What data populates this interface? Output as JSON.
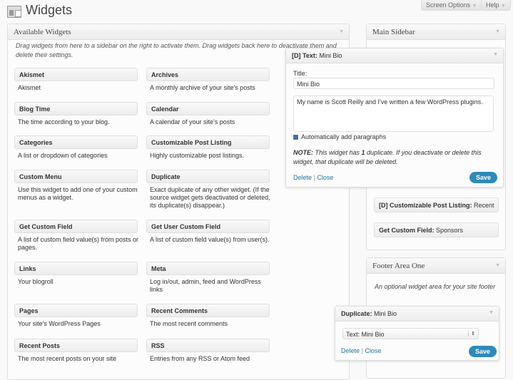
{
  "header": {
    "title": "Widgets",
    "screen_options": "Screen Options",
    "help": "Help"
  },
  "available": {
    "title": "Available Widgets",
    "intro": "Drag widgets from here to a sidebar on the right to activate them. Drag widgets back here to deactivate them and delete their settings.",
    "widgets": [
      {
        "name": "Akismet",
        "desc": "Akismet"
      },
      {
        "name": "Archives",
        "desc": "A monthly archive of your site's posts"
      },
      {
        "name": "Blog Time",
        "desc": "The time according to your blog."
      },
      {
        "name": "Calendar",
        "desc": "A calendar of your site's posts"
      },
      {
        "name": "Categories",
        "desc": "A list or dropdown of categories"
      },
      {
        "name": "Customizable Post Listing",
        "desc": "Highly customizable post listings."
      },
      {
        "name": "Custom Menu",
        "desc": "Use this widget to add one of your custom menus as a widget."
      },
      {
        "name": "Duplicate",
        "desc": "Exact duplicate of any other widget. (If the source widget gets deactivated or deleted, its duplicate(s) disappear.)"
      },
      {
        "name": "Get Custom Field",
        "desc": "A list of custom field value(s) from posts or pages."
      },
      {
        "name": "Get User Custom Field",
        "desc": "A list of custom field value(s) from user(s)."
      },
      {
        "name": "Links",
        "desc": "Your blogroll"
      },
      {
        "name": "Meta",
        "desc": "Log in/out, admin, feed and WordPress links"
      },
      {
        "name": "Pages",
        "desc": "Your site's WordPress Pages"
      },
      {
        "name": "Recent Comments",
        "desc": "The most recent comments"
      },
      {
        "name": "Recent Posts",
        "desc": "The most recent posts on your site"
      },
      {
        "name": "RSS",
        "desc": "Entries from any RSS or Atom feed"
      }
    ]
  },
  "main_sidebar": {
    "title": "Main Sidebar",
    "text_widget": {
      "type": "[D] Text:",
      "name": "Mini Bio",
      "title_label": "Title:",
      "title_value": "Mini Bio",
      "content": "My name is Scott Reilly and I've written a few WordPress plugins.",
      "auto_p": "Automatically add paragraphs",
      "auto_p_checked": true,
      "note_bold": "NOTE:",
      "note_a": " This widget has ",
      "note_count": "1",
      "note_b": " duplicate. If you deactivate or delete this widget, that duplicate will be deleted.",
      "delete": "Delete",
      "sep": "|",
      "close": "Close",
      "save": "Save"
    },
    "widgets": [
      {
        "type": "[D] Customizable Post Listing:",
        "name": "Recent"
      },
      {
        "type": "Get Custom Field:",
        "name": "Sponsors"
      }
    ]
  },
  "footer": {
    "title": "Footer Area One",
    "desc": "An optional widget area for your site footer",
    "dup_widget": {
      "type": "Duplicate:",
      "name": "Mini Bio",
      "select_value": "Text: Mini Bio",
      "delete": "Delete",
      "sep": "|",
      "close": "Close",
      "save": "Save"
    }
  }
}
